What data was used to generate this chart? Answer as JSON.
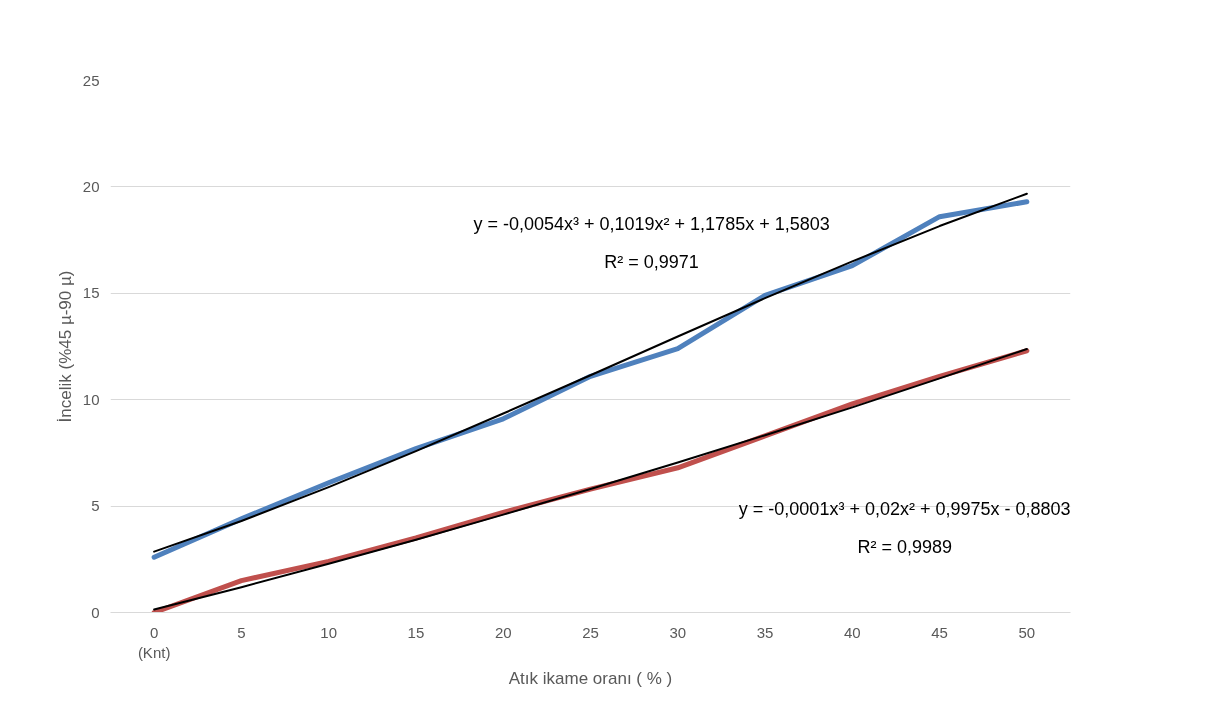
{
  "chart_data": {
    "type": "line",
    "xlabel": "Atık ikame oranı ( % )",
    "ylabel": "İncelik (%45 µ-90 µ)",
    "categories": [
      "0\n(Knt)",
      "5",
      "10",
      "15",
      "20",
      "25",
      "30",
      "35",
      "40",
      "45",
      "50"
    ],
    "series": [
      {
        "color": "#4f81bd",
        "values": [
          2.6,
          4.4,
          6.1,
          7.7,
          9.1,
          11.1,
          12.4,
          14.9,
          16.3,
          18.6,
          19.3
        ]
      },
      {
        "color": "#c0504d",
        "values": [
          0.0,
          1.5,
          2.4,
          3.5,
          4.7,
          5.8,
          6.8,
          8.3,
          9.8,
          11.1,
          12.3
        ]
      },
      {
        "color": "#000000",
        "values": [
          2.86,
          4.3,
          5.89,
          7.58,
          9.35,
          11.15,
          12.97,
          14.77,
          16.5,
          18.16,
          19.68
        ]
      },
      {
        "color": "#000000",
        "values": [
          0.14,
          1.19,
          2.29,
          3.42,
          4.6,
          5.8,
          7.05,
          8.33,
          9.64,
          11.0,
          12.38
        ]
      }
    ],
    "ylim": [
      0,
      25
    ],
    "yticks": [
      0,
      5,
      10,
      15,
      20,
      25
    ],
    "grid": "y",
    "marker": "none",
    "line_style": "solid",
    "annotations": [
      "y = -0,0054x³ + 0,1019x² + 1,1785x + 1,5803",
      "R² = 0,9971",
      "y = -0,0001x³ + 0,02x² + 0,9975x - 0,8803",
      "R² = 0,9989"
    ]
  }
}
